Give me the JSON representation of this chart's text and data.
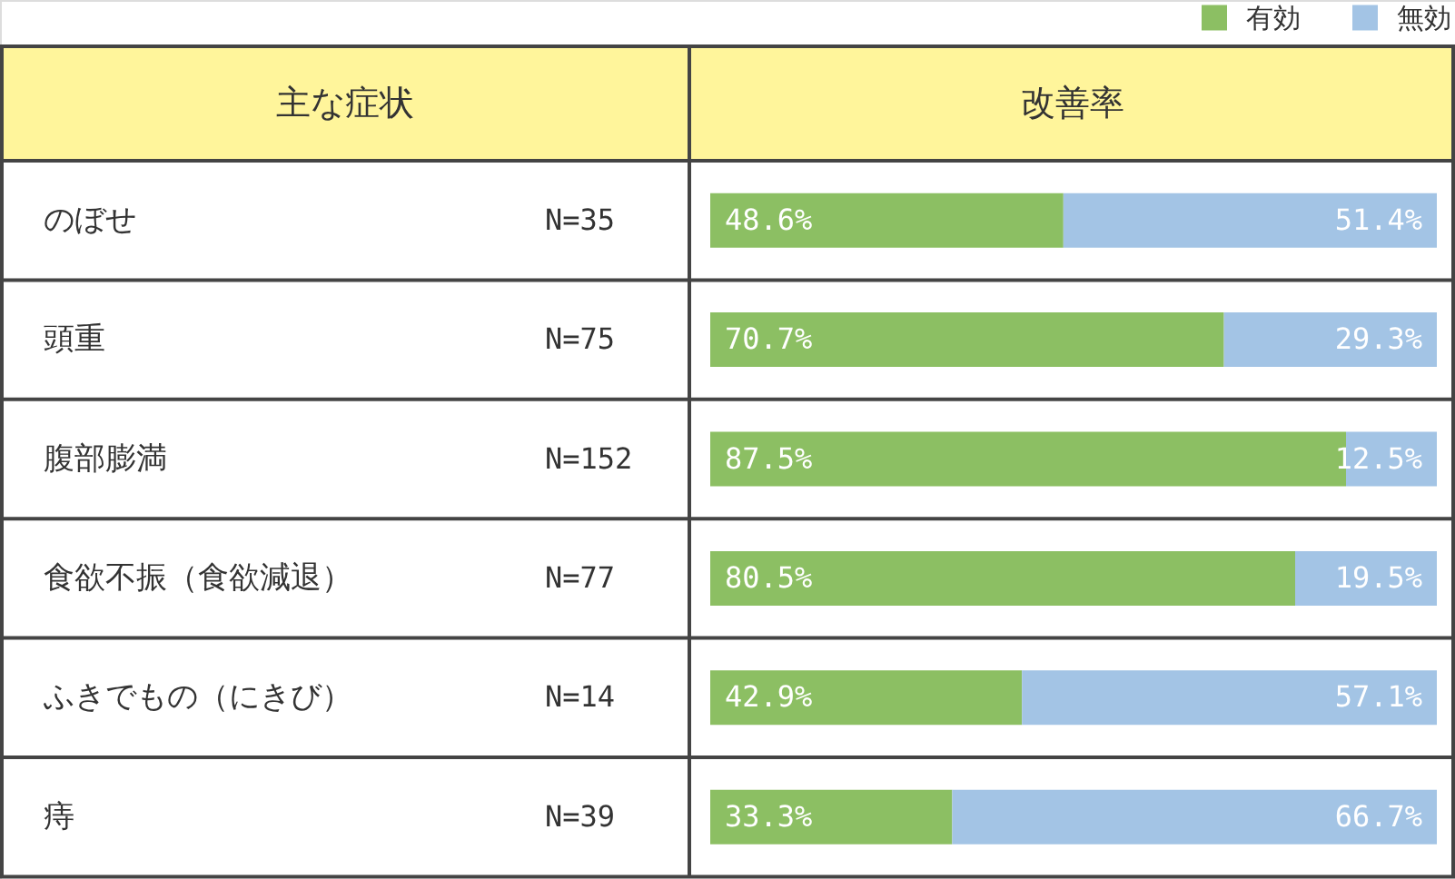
{
  "chart_data": {
    "type": "bar",
    "orientation": "horizontal",
    "stacked": true,
    "ylabel": "主な症状",
    "xlabel": "改善率",
    "categories": [
      "のぼせ",
      "頭重",
      "腹部膨満",
      "食欲不振（食欲減退）",
      "ふきでもの（にきび）",
      "痔"
    ],
    "series": [
      {
        "name": "有効",
        "color": "#8cbf63",
        "values": [
          48.6,
          70.7,
          87.5,
          80.5,
          42.9,
          33.3
        ],
        "value_labels": [
          "48.6%",
          "70.7%",
          "87.5%",
          "80.5%",
          "42.9%",
          "33.3%"
        ]
      },
      {
        "name": "無効",
        "color": "#a3c4e5",
        "values": [
          51.4,
          29.3,
          12.5,
          19.5,
          57.1,
          66.7
        ],
        "value_labels": [
          "51.4%",
          "29.3%",
          "12.5%",
          "19.5%",
          "57.1%",
          "66.7%"
        ]
      }
    ],
    "xlim": [
      0,
      100
    ],
    "tick_labels": "y",
    "legend": "top right",
    "annotations": [
      "N=35",
      "N=75",
      "N=152",
      "N=77",
      "N=14",
      "N=39"
    ]
  }
}
